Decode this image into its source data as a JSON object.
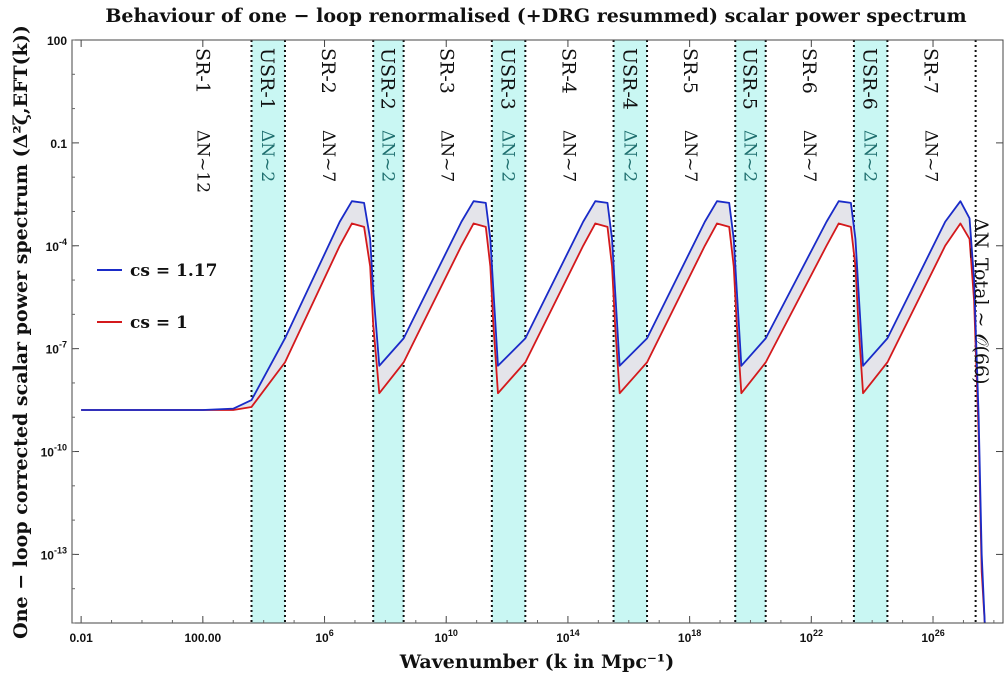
{
  "chart_data": {
    "type": "line",
    "title": "Behaviour of one − loop renormalised (+DRG resummed) scalar power spectrum",
    "xlabel": "Wavenumber (k in Mpc⁻¹)",
    "ylabel": "One − loop corrected scalar power spectrum (Δ²ζ,EFT(k))",
    "x_scale": "log",
    "y_scale": "log",
    "xlim_log10": [
      -2.3,
      28.3
    ],
    "ylim_log10": [
      -15,
      2
    ],
    "x_ticks": [
      {
        "log": -2,
        "label": "0.01"
      },
      {
        "log": 2,
        "label": "100.00"
      },
      {
        "log": 6,
        "label": "10^6"
      },
      {
        "log": 10,
        "label": "10^10"
      },
      {
        "log": 14,
        "label": "10^14"
      },
      {
        "log": 18,
        "label": "10^18"
      },
      {
        "log": 22,
        "label": "10^22"
      },
      {
        "log": 26,
        "label": "10^26"
      }
    ],
    "y_ticks": [
      {
        "log": 2,
        "label": "100"
      },
      {
        "log": -1,
        "label": "0.1"
      },
      {
        "log": -4,
        "label": "10^-4"
      },
      {
        "log": -7,
        "label": "10^-7"
      },
      {
        "log": -10,
        "label": "10^-10"
      },
      {
        "log": -13,
        "label": "10^-13"
      }
    ],
    "regions": [
      {
        "label": "SR-1",
        "dn": "ΔN~12",
        "kind": "SR",
        "start": -2.3,
        "end": 3.6
      },
      {
        "label": "USR-1",
        "dn": "ΔN~2",
        "kind": "USR",
        "start": 3.6,
        "end": 4.7
      },
      {
        "label": "SR-2",
        "dn": "ΔN~7",
        "kind": "SR",
        "start": 4.7,
        "end": 7.6
      },
      {
        "label": "USR-2",
        "dn": "ΔN~2",
        "kind": "USR",
        "start": 7.6,
        "end": 8.6
      },
      {
        "label": "SR-3",
        "dn": "ΔN~7",
        "kind": "SR",
        "start": 8.6,
        "end": 11.5
      },
      {
        "label": "USR-3",
        "dn": "ΔN~2",
        "kind": "USR",
        "start": 11.5,
        "end": 12.6
      },
      {
        "label": "SR-4",
        "dn": "ΔN~7",
        "kind": "SR",
        "start": 12.6,
        "end": 15.5
      },
      {
        "label": "USR-4",
        "dn": "ΔN~2",
        "kind": "USR",
        "start": 15.5,
        "end": 16.6
      },
      {
        "label": "SR-5",
        "dn": "ΔN~7",
        "kind": "SR",
        "start": 16.6,
        "end": 19.5
      },
      {
        "label": "USR-5",
        "dn": "ΔN~2",
        "kind": "USR",
        "start": 19.5,
        "end": 20.5
      },
      {
        "label": "SR-6",
        "dn": "ΔN~7",
        "kind": "SR",
        "start": 20.5,
        "end": 23.4
      },
      {
        "label": "USR-6",
        "dn": "ΔN~2",
        "kind": "USR",
        "start": 23.4,
        "end": 24.5
      },
      {
        "label": "SR-7",
        "dn": "ΔN~7",
        "kind": "SR",
        "start": 24.5,
        "end": 27.4
      }
    ],
    "annotation": "ΔN_Total ~ 𝒪(66)",
    "region_colors": {
      "usr_fill": "#c9f7f3",
      "divider": "#111111"
    },
    "series": [
      {
        "name": "cs = 1.17",
        "legend": "cs = 1.17",
        "color": "#1a2bc8",
        "points_log10": [
          [
            -2.0,
            -8.79
          ],
          [
            2.0,
            -8.79
          ],
          [
            3.0,
            -8.75
          ],
          [
            3.6,
            -8.5
          ],
          [
            4.7,
            -6.7
          ],
          [
            6.5,
            -3.3
          ],
          [
            6.9,
            -2.7
          ],
          [
            7.3,
            -2.75
          ],
          [
            7.5,
            -3.8
          ],
          [
            7.6,
            -5.3
          ],
          [
            7.8,
            -7.5
          ],
          [
            8.6,
            -6.7
          ],
          [
            10.5,
            -3.3
          ],
          [
            10.9,
            -2.7
          ],
          [
            11.3,
            -2.75
          ],
          [
            11.45,
            -3.8
          ],
          [
            11.55,
            -5.3
          ],
          [
            11.7,
            -7.5
          ],
          [
            12.6,
            -6.7
          ],
          [
            14.5,
            -3.3
          ],
          [
            14.9,
            -2.7
          ],
          [
            15.3,
            -2.75
          ],
          [
            15.45,
            -3.8
          ],
          [
            15.55,
            -5.3
          ],
          [
            15.7,
            -7.5
          ],
          [
            16.6,
            -6.7
          ],
          [
            18.5,
            -3.3
          ],
          [
            18.9,
            -2.7
          ],
          [
            19.3,
            -2.75
          ],
          [
            19.45,
            -3.8
          ],
          [
            19.55,
            -5.3
          ],
          [
            19.7,
            -7.5
          ],
          [
            20.5,
            -6.7
          ],
          [
            22.5,
            -3.3
          ],
          [
            22.9,
            -2.7
          ],
          [
            23.3,
            -2.75
          ],
          [
            23.45,
            -3.8
          ],
          [
            23.55,
            -5.3
          ],
          [
            23.7,
            -7.5
          ],
          [
            24.5,
            -6.7
          ],
          [
            26.4,
            -3.3
          ],
          [
            26.9,
            -2.7
          ],
          [
            27.2,
            -3.2
          ],
          [
            27.35,
            -5.0
          ],
          [
            27.5,
            -9.0
          ],
          [
            27.6,
            -13.0
          ],
          [
            27.7,
            -15.0
          ]
        ]
      },
      {
        "name": "cs = 1",
        "legend": "cs = 1",
        "color": "#d4191c",
        "points_log10": [
          [
            -2.0,
            -8.79
          ],
          [
            2.0,
            -8.79
          ],
          [
            3.0,
            -8.79
          ],
          [
            3.6,
            -8.7
          ],
          [
            4.7,
            -7.4
          ],
          [
            6.5,
            -4.0
          ],
          [
            6.9,
            -3.35
          ],
          [
            7.3,
            -3.45
          ],
          [
            7.5,
            -4.6
          ],
          [
            7.6,
            -6.3
          ],
          [
            7.8,
            -8.3
          ],
          [
            8.6,
            -7.4
          ],
          [
            10.5,
            -4.0
          ],
          [
            10.9,
            -3.35
          ],
          [
            11.3,
            -3.45
          ],
          [
            11.45,
            -4.6
          ],
          [
            11.55,
            -6.3
          ],
          [
            11.7,
            -8.3
          ],
          [
            12.6,
            -7.4
          ],
          [
            14.5,
            -4.0
          ],
          [
            14.9,
            -3.35
          ],
          [
            15.3,
            -3.45
          ],
          [
            15.45,
            -4.6
          ],
          [
            15.55,
            -6.3
          ],
          [
            15.7,
            -8.3
          ],
          [
            16.6,
            -7.4
          ],
          [
            18.5,
            -4.0
          ],
          [
            18.9,
            -3.35
          ],
          [
            19.3,
            -3.45
          ],
          [
            19.45,
            -4.6
          ],
          [
            19.55,
            -6.3
          ],
          [
            19.7,
            -8.3
          ],
          [
            20.5,
            -7.4
          ],
          [
            22.5,
            -4.0
          ],
          [
            22.9,
            -3.35
          ],
          [
            23.3,
            -3.45
          ],
          [
            23.45,
            -4.6
          ],
          [
            23.55,
            -6.3
          ],
          [
            23.7,
            -8.3
          ],
          [
            24.5,
            -7.4
          ],
          [
            26.4,
            -4.0
          ],
          [
            26.9,
            -3.35
          ],
          [
            27.2,
            -3.8
          ],
          [
            27.35,
            -5.6
          ],
          [
            27.5,
            -9.5
          ],
          [
            27.6,
            -13.5
          ],
          [
            27.7,
            -15.0
          ]
        ]
      }
    ]
  }
}
